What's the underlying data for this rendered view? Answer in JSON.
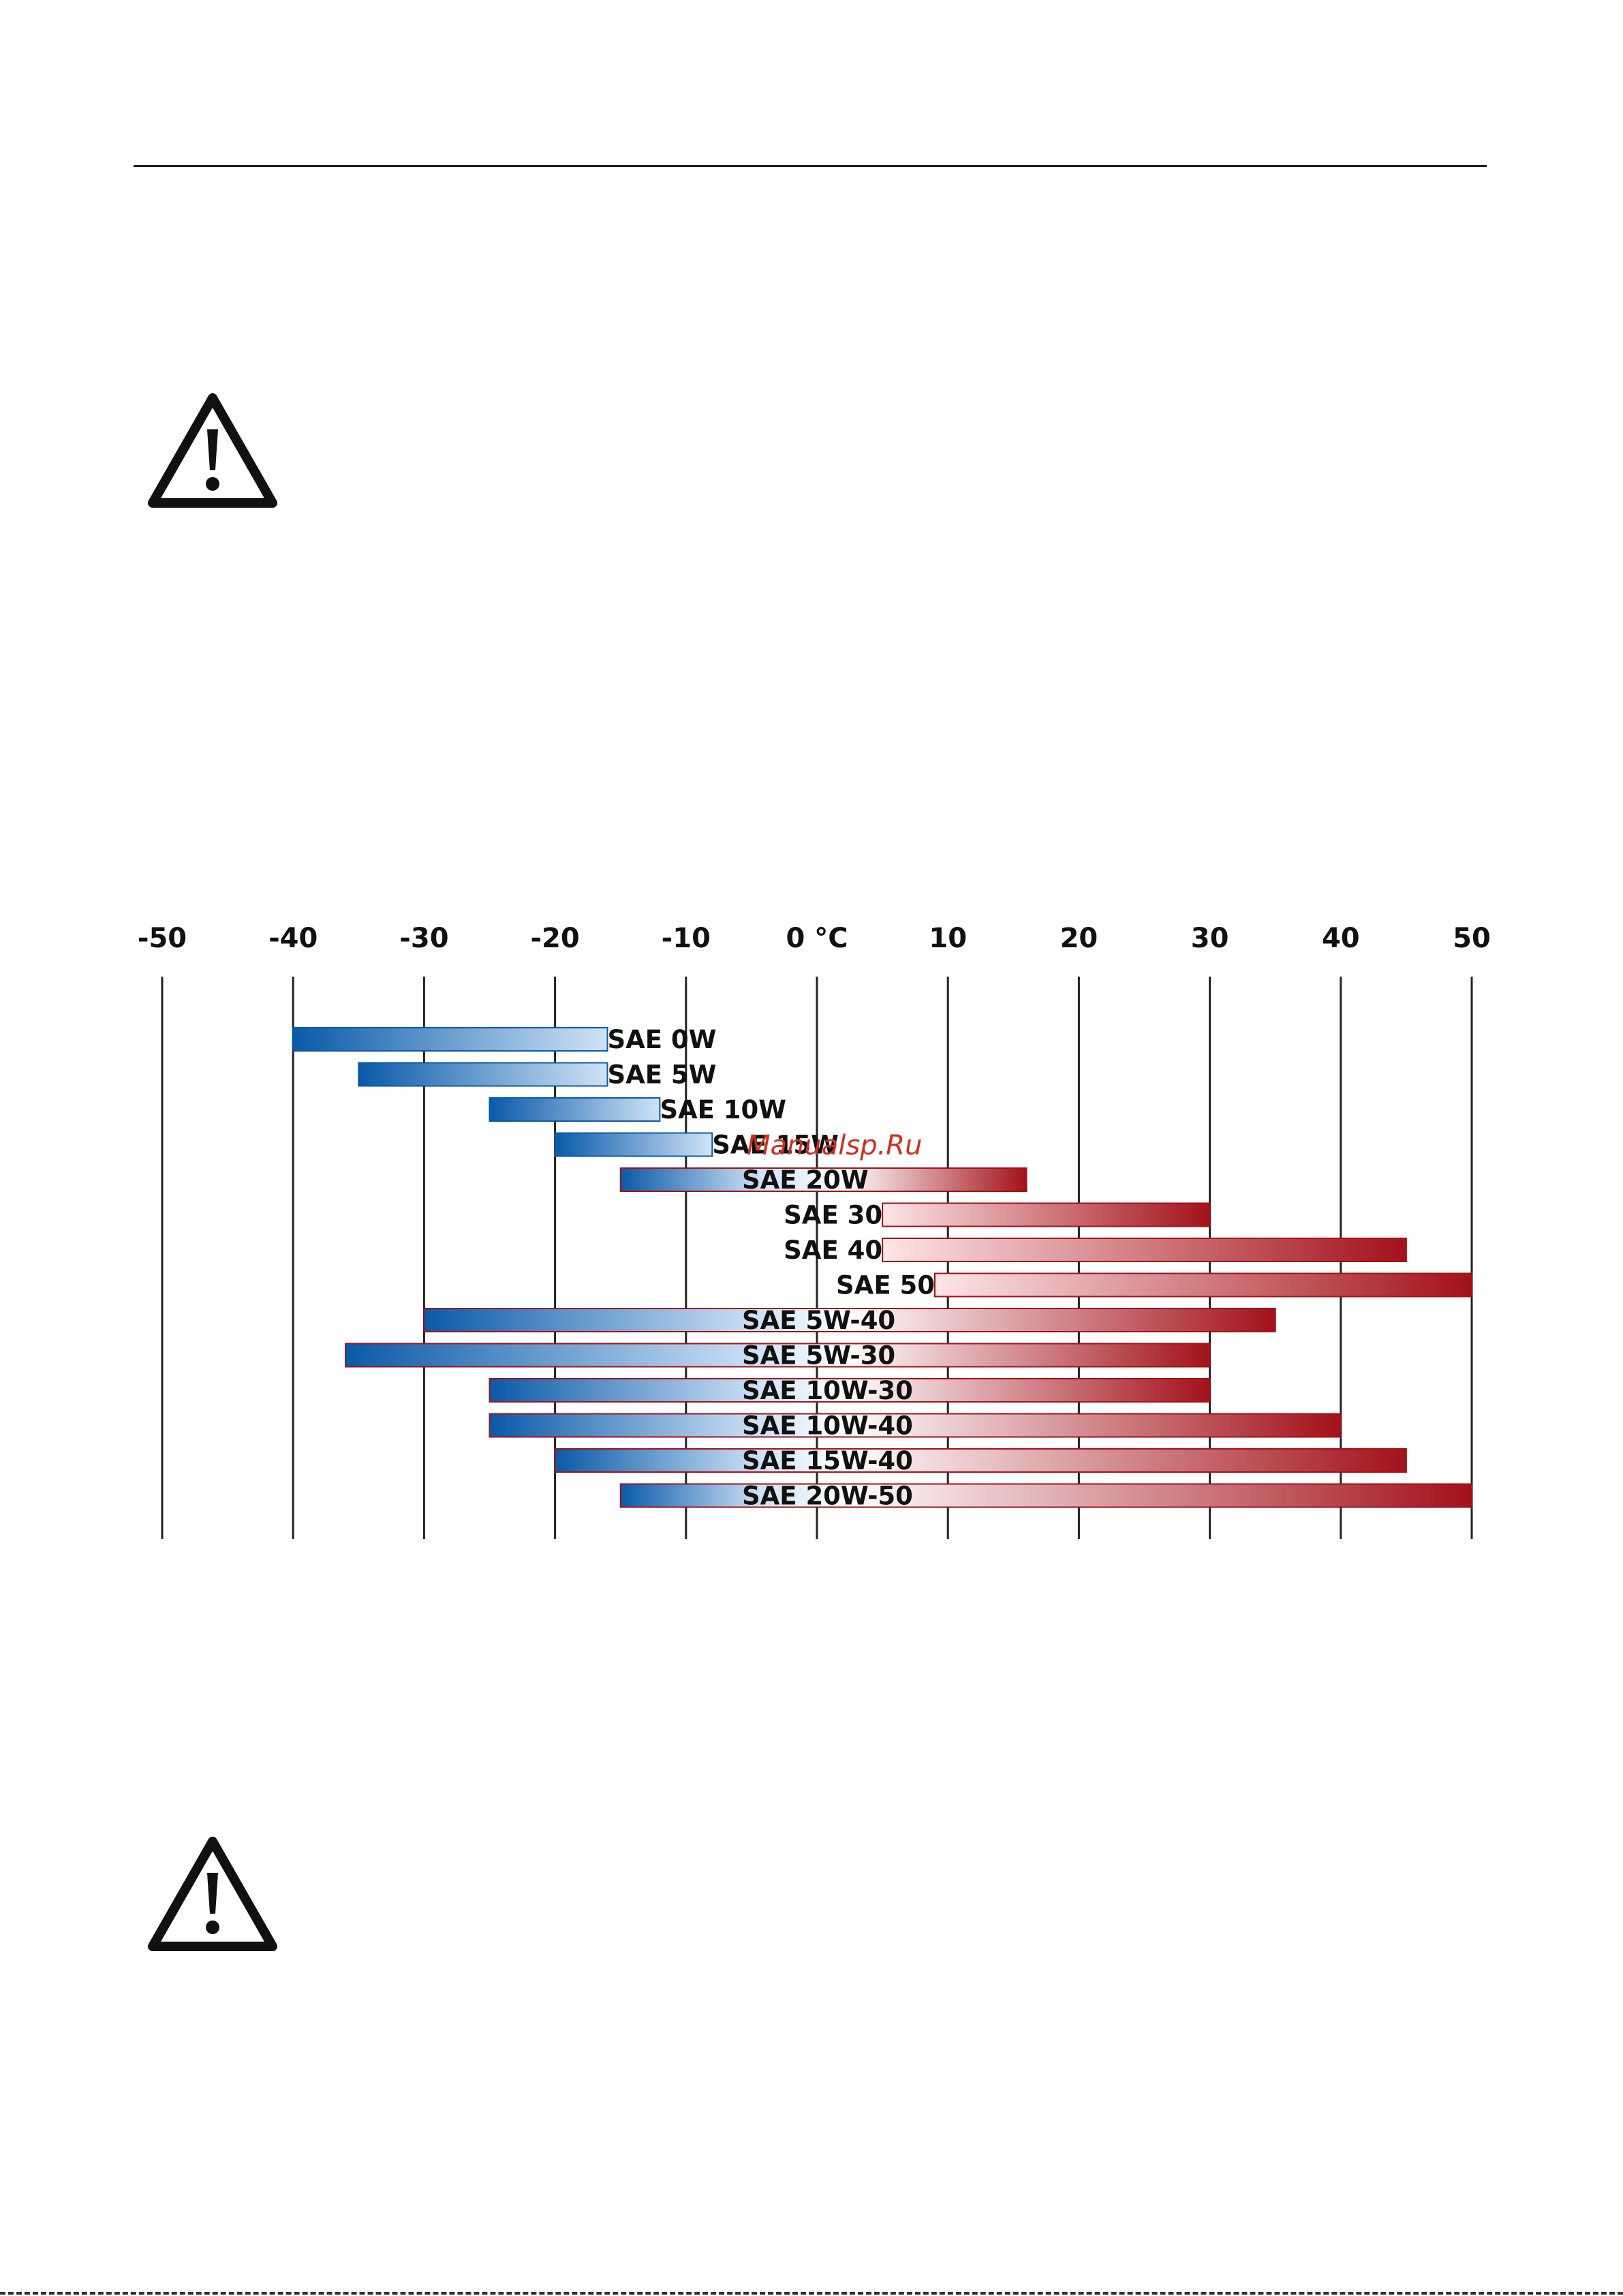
{
  "watermark": "Manualsp.Ru",
  "icons": {
    "warning_top": "warning-triangle-icon",
    "warning_bottom": "warning-triangle-icon"
  },
  "colors": {
    "cold": "#1f7fd4",
    "cold_dark": "#0a5aa8",
    "hot": "#e3202a",
    "hot_dark": "#a3111a",
    "mid": "#ffffff"
  },
  "chart_data": {
    "type": "bar",
    "orientation": "horizontal",
    "unit": "°C",
    "x_ticks": [
      "-50",
      "-40",
      "-30",
      "-20",
      "-10",
      "0 °C",
      "10",
      "20",
      "30",
      "40",
      "50"
    ],
    "xlim": [
      -50,
      50
    ],
    "grid": true,
    "series": [
      {
        "label": "SAE 0W",
        "from": -40,
        "to": -16
      },
      {
        "label": "SAE 5W",
        "from": -35,
        "to": -16
      },
      {
        "label": "SAE 10W",
        "from": -25,
        "to": -12
      },
      {
        "label": "SAE 15W",
        "from": -20,
        "to": -8
      },
      {
        "label": "SAE 20W",
        "from": -15,
        "to": 16
      },
      {
        "label": "SAE 30",
        "from": 5,
        "to": 30
      },
      {
        "label": "SAE 40",
        "from": 5,
        "to": 45
      },
      {
        "label": "SAE 50",
        "from": 9,
        "to": 50
      },
      {
        "label": "SAE 5W-40",
        "from": -30,
        "to": 35
      },
      {
        "label": "SAE 5W-30",
        "from": -36,
        "to": 30
      },
      {
        "label": "SAE 10W-30",
        "from": -25,
        "to": 30
      },
      {
        "label": "SAE 10W-40",
        "from": -25,
        "to": 40
      },
      {
        "label": "SAE 15W-40",
        "from": -20,
        "to": 45
      },
      {
        "label": "SAE 20W-50",
        "from": -15,
        "to": 50
      }
    ]
  }
}
